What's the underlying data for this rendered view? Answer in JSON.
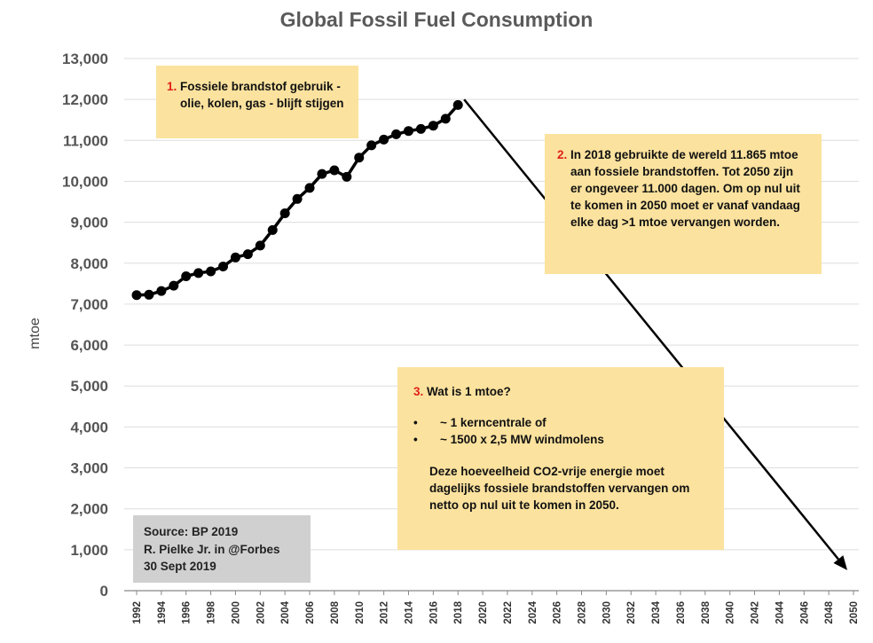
{
  "chart_data": {
    "type": "line",
    "title": "Global Fossil Fuel Consumption",
    "ylabel": "mtoe",
    "xlabel": "",
    "ylim": [
      0,
      13000
    ],
    "xlim": [
      1992,
      2050
    ],
    "y_ticks": [
      "0",
      "1,000",
      "2,000",
      "3,000",
      "4,000",
      "5,000",
      "6,000",
      "7,000",
      "8,000",
      "9,000",
      "10,000",
      "11,000",
      "12,000",
      "13,000"
    ],
    "x_ticks": [
      1992,
      1994,
      1996,
      1998,
      2000,
      2002,
      2004,
      2006,
      2008,
      2010,
      2012,
      2014,
      2016,
      2018,
      2020,
      2022,
      2024,
      2026,
      2028,
      2030,
      2032,
      2034,
      2036,
      2038,
      2040,
      2042,
      2044,
      2046,
      2048,
      2050
    ],
    "grid": true,
    "series": [
      {
        "color": "#000000",
        "x": [
          1992,
          1993,
          1994,
          1995,
          1996,
          1997,
          1998,
          1999,
          2000,
          2001,
          2002,
          2003,
          2004,
          2005,
          2006,
          2007,
          2008,
          2009,
          2010,
          2011,
          2012,
          2013,
          2014,
          2015,
          2016,
          2017,
          2018
        ],
        "values": [
          7220,
          7230,
          7320,
          7450,
          7680,
          7760,
          7800,
          7920,
          8140,
          8220,
          8430,
          8810,
          9220,
          9570,
          9840,
          10180,
          10270,
          10110,
          10580,
          10880,
          11020,
          11150,
          11230,
          11280,
          11360,
          11530,
          11865
        ]
      }
    ],
    "arrow": {
      "color": "#000000",
      "from": [
        2018.5,
        12000
      ],
      "to": [
        2049.5,
        500
      ]
    }
  },
  "notes": {
    "note1": {
      "num": "1.",
      "text": "Fossiele brandstof gebruik - olie, kolen, gas - blijft stijgen"
    },
    "note2": {
      "num": "2.",
      "text": "In 2018 gebruikte de wereld 11.865 mtoe aan fossiele brandstoffen. Tot 2050 zijn er ongeveer 11.000 dagen. Om op nul uit te komen in 2050 moet er vanaf vandaag elke dag >1 mtoe vervangen worden."
    },
    "note3": {
      "num": "3.",
      "heading": "Wat is 1 mtoe?",
      "bullet_symbol": "•",
      "bullets": [
        "~ 1 kerncentrale of",
        "~ 1500 x 2,5 MW windmolens"
      ],
      "text": "Deze hoeveelheid CO2-vrije energie moet dagelijks fossiele brandstoffen vervangen om netto op nul uit te komen in 2050."
    }
  },
  "source": {
    "line1": "Source: BP 2019",
    "line2": "R. Pielke Jr. in @Forbes",
    "line3": "30 Sept 2019"
  },
  "colors": {
    "note_bg": "#fbe29e",
    "source_bg": "#d0d0d0",
    "accent_number": "#e0201b",
    "gridline": "#dedede"
  }
}
